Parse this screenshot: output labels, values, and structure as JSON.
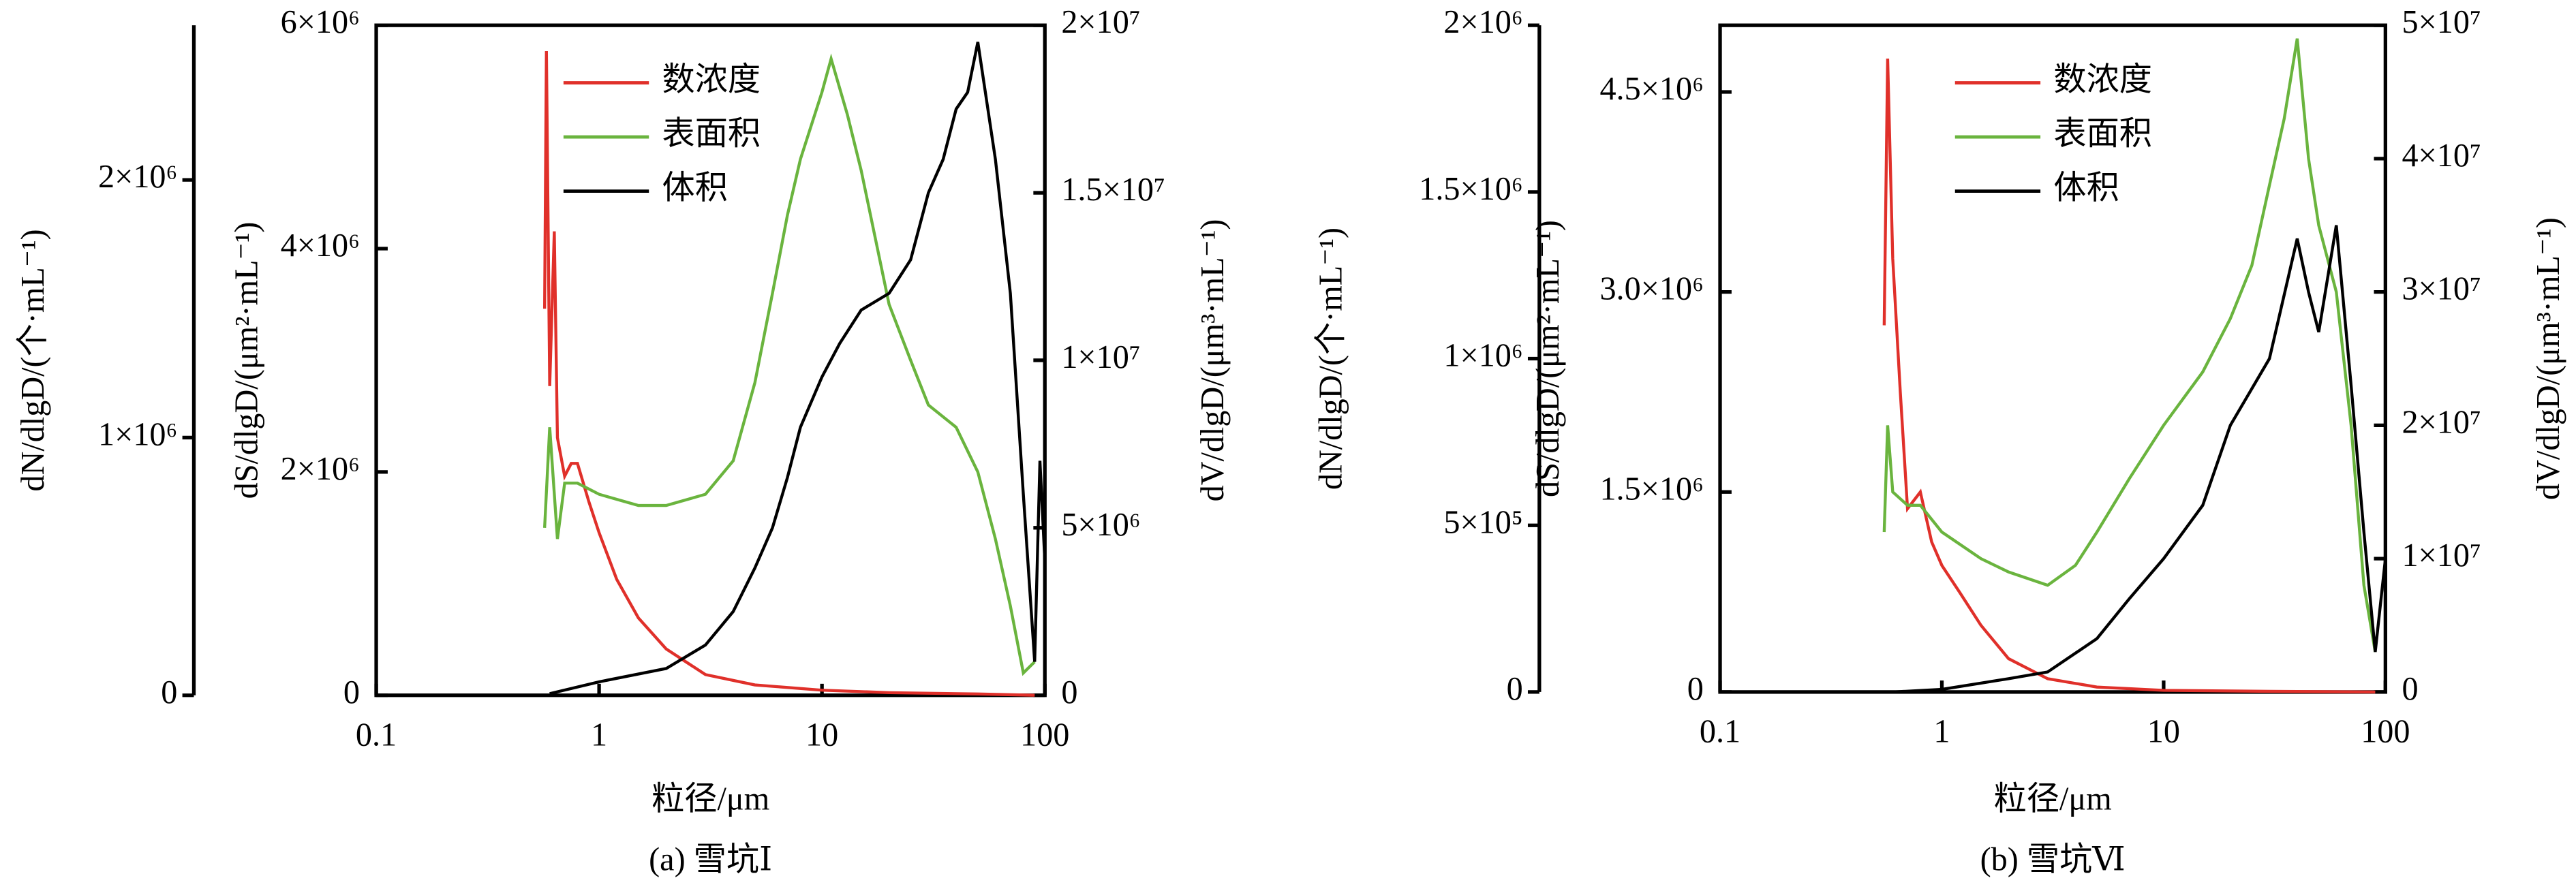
{
  "chart_data": [
    {
      "type": "line",
      "caption": "(a) 雪坑Ⅰ",
      "xlabel": "粒径/μm",
      "xscale": "log",
      "xlim": [
        0.1,
        100
      ],
      "xticks": [
        0.1,
        1,
        10,
        100
      ],
      "ylabel": "dN/dlgD/(个·mL⁻¹)",
      "ylim": [
        0,
        2600000
      ],
      "yticks": [
        0,
        {
          "value": 1000000,
          "label": "1×10⁶"
        },
        {
          "value": 2000000,
          "label": "2×10⁶"
        }
      ],
      "y2label": "dS/dlgD/(μm²·mL⁻¹)",
      "y2lim": [
        0,
        6000000
      ],
      "y2ticks": [
        0,
        {
          "value": 2000000,
          "label": "2×10⁶"
        },
        {
          "value": 4000000,
          "label": "4×10⁶"
        },
        {
          "value": 6000000,
          "label": "6×10⁶"
        }
      ],
      "y3label": "dV/dlgD/(μm³·mL⁻¹)",
      "y3lim": [
        0,
        20000000
      ],
      "y3ticks": [
        0,
        {
          "value": 5000000,
          "label": "5×10⁶"
        },
        {
          "value": 10000000,
          "label": "1×10⁷"
        },
        {
          "value": 15000000,
          "label": "1.5×10⁷"
        },
        {
          "value": 20000000,
          "label": "2×10⁷"
        }
      ],
      "series": [
        {
          "name": "数浓度",
          "color": "#e0302a",
          "axis": "y",
          "x": [
            0.57,
            0.58,
            0.6,
            0.63,
            0.65,
            0.7,
            0.75,
            0.8,
            0.9,
            1,
            1.2,
            1.5,
            2,
            3,
            5,
            10,
            20,
            50,
            90
          ],
          "values": [
            1500000,
            2500000,
            1200000,
            1800000,
            1000000,
            850000,
            900000,
            900000,
            750000,
            630000,
            450000,
            300000,
            180000,
            80000,
            40000,
            20000,
            10000,
            5000,
            0
          ]
        },
        {
          "name": "表面积",
          "color": "#6ab43e",
          "axis": "y2",
          "x": [
            0.57,
            0.6,
            0.65,
            0.7,
            0.8,
            1,
            1.5,
            2,
            3,
            4,
            5,
            6,
            7,
            8,
            10,
            11,
            13,
            15,
            20,
            25,
            30,
            40,
            50,
            60,
            70,
            80,
            90
          ],
          "values": [
            1500000,
            2400000,
            1400000,
            1900000,
            1900000,
            1800000,
            1700000,
            1700000,
            1800000,
            2100000,
            2800000,
            3600000,
            4300000,
            4800000,
            5400000,
            5700000,
            5200000,
            4700000,
            3500000,
            3000000,
            2600000,
            2400000,
            2000000,
            1400000,
            800000,
            200000,
            300000
          ]
        },
        {
          "name": "体积",
          "color": "#000000",
          "axis": "y3",
          "x": [
            0.6,
            1,
            2,
            3,
            4,
            5,
            6,
            7,
            8,
            10,
            12,
            15,
            20,
            25,
            30,
            35,
            40,
            45,
            50,
            60,
            70,
            80,
            90,
            95,
            100
          ],
          "values": [
            50000,
            400000,
            800000,
            1500000,
            2500000,
            3800000,
            5000000,
            6500000,
            8000000,
            9500000,
            10500000,
            11500000,
            12000000,
            13000000,
            15000000,
            16000000,
            17500000,
            18000000,
            19500000,
            16000000,
            12000000,
            6000000,
            1000000,
            7000000,
            4000000
          ]
        }
      ]
    },
    {
      "type": "line",
      "caption": "(b) 雪坑Ⅵ",
      "xlabel": "粒径/μm",
      "xscale": "log",
      "xlim": [
        0.1,
        100
      ],
      "xticks": [
        0.1,
        1,
        10,
        100
      ],
      "ylabel": "dN/dlgD/(个·mL⁻¹)",
      "ylim": [
        0,
        2000000
      ],
      "yticks": [
        0,
        {
          "value": 500000,
          "label": "5×10⁵"
        },
        {
          "value": 1000000,
          "label": "1×10⁶"
        },
        {
          "value": 1500000,
          "label": "1.5×10⁶"
        },
        {
          "value": 2000000,
          "label": "2×10⁶"
        }
      ],
      "y2label": "dS/dlgD/(μm²·mL⁻¹)",
      "y2lim": [
        0,
        5000000
      ],
      "y2ticks": [
        0,
        {
          "value": 1500000,
          "label": "1.5×10⁶"
        },
        {
          "value": 3000000,
          "label": "3.0×10⁶"
        },
        {
          "value": 4500000,
          "label": "4.5×10⁶"
        }
      ],
      "y3label": "dV/dlgD/(μm³·mL⁻¹)",
      "y3lim": [
        0,
        50000000
      ],
      "y3ticks": [
        0,
        {
          "value": 10000000,
          "label": "1×10⁷"
        },
        {
          "value": 20000000,
          "label": "2×10⁷"
        },
        {
          "value": 30000000,
          "label": "3×10⁷"
        },
        {
          "value": 40000000,
          "label": "4×10⁷"
        },
        {
          "value": 50000000,
          "label": "5×10⁷"
        }
      ],
      "series": [
        {
          "name": "数浓度",
          "color": "#e0302a",
          "axis": "y",
          "x": [
            0.55,
            0.57,
            0.6,
            0.65,
            0.7,
            0.8,
            0.9,
            1,
            1.2,
            1.5,
            2,
            3,
            5,
            10,
            30,
            90
          ],
          "values": [
            1100000,
            1900000,
            1300000,
            900000,
            550000,
            600000,
            450000,
            380000,
            300000,
            200000,
            100000,
            40000,
            15000,
            5000,
            2000,
            0
          ]
        },
        {
          "name": "表面积",
          "color": "#6ab43e",
          "axis": "y2",
          "x": [
            0.55,
            0.57,
            0.6,
            0.7,
            0.8,
            1,
            1.5,
            2,
            3,
            4,
            5,
            7,
            10,
            15,
            20,
            25,
            30,
            35,
            40,
            45,
            50,
            60,
            70,
            80,
            90
          ],
          "values": [
            1200000,
            2000000,
            1500000,
            1400000,
            1400000,
            1200000,
            1000000,
            900000,
            800000,
            950000,
            1200000,
            1600000,
            2000000,
            2400000,
            2800000,
            3200000,
            3800000,
            4300000,
            4900000,
            4000000,
            3500000,
            3000000,
            2000000,
            800000,
            300000
          ]
        },
        {
          "name": "体积",
          "color": "#000000",
          "axis": "y3",
          "x": [
            0.6,
            1,
            2,
            3,
            5,
            7,
            10,
            15,
            20,
            30,
            40,
            45,
            50,
            60,
            70,
            80,
            90,
            100
          ],
          "values": [
            0,
            200000,
            1000000,
            1500000,
            4000000,
            7000000,
            10000000,
            14000000,
            20000000,
            25000000,
            34000000,
            30000000,
            27000000,
            35000000,
            23000000,
            12000000,
            3000000,
            10000000
          ]
        }
      ]
    }
  ]
}
